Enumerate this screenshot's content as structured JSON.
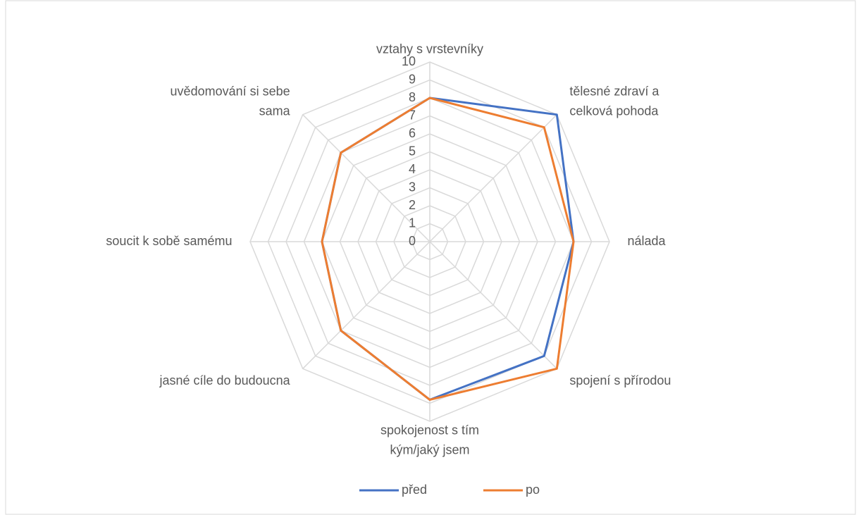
{
  "chart_data": {
    "type": "radar",
    "categories": [
      "vztahy s vrstevníky",
      "tělesné zdraví a celková pohoda",
      "nálada",
      "spojení s přírodou",
      "spokojenost s tím kým/jaký jsem",
      "jasné cíle do budoucna",
      "soucit k sobě samému",
      "uvědomování si sebe sama"
    ],
    "series": [
      {
        "name": "před",
        "color": "#4472c4",
        "values": [
          8,
          10,
          8,
          9,
          8.8,
          7,
          6,
          7
        ]
      },
      {
        "name": "po",
        "color": "#ed7d31",
        "values": [
          8,
          9,
          8,
          10,
          8.8,
          7,
          6,
          7
        ]
      }
    ],
    "ylim": [
      0,
      10
    ],
    "yticks": [
      0,
      1,
      2,
      3,
      4,
      5,
      6,
      7,
      8,
      9,
      10
    ],
    "grid": true,
    "legend": "bottom"
  }
}
